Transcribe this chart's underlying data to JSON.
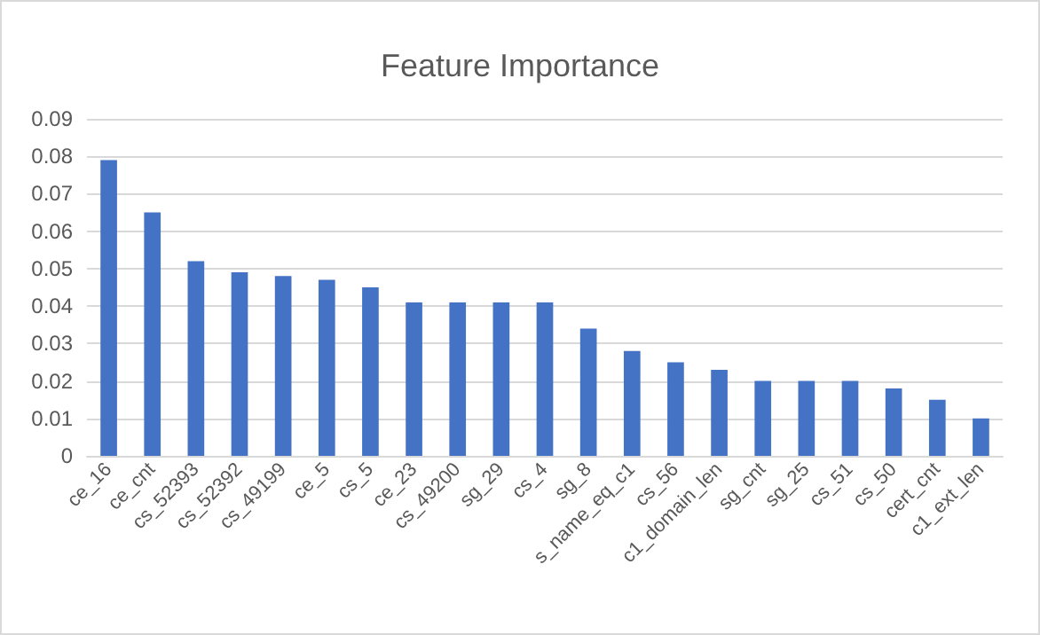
{
  "chart_data": {
    "type": "bar",
    "title": "Feature Importance",
    "categories": [
      "ce_16",
      "ce_cnt",
      "cs_52393",
      "cs_52392",
      "cs_49199",
      "ce_5",
      "cs_5",
      "ce_23",
      "cs_49200",
      "sg_29",
      "cs_4",
      "sg_8",
      "s_name_eq_c1",
      "cs_56",
      "c1_domain_len",
      "sg_cnt",
      "sg_25",
      "cs_51",
      "cs_50",
      "cert_cnt",
      "c1_ext_len"
    ],
    "values": [
      0.079,
      0.065,
      0.052,
      0.049,
      0.048,
      0.047,
      0.045,
      0.041,
      0.041,
      0.041,
      0.041,
      0.034,
      0.028,
      0.025,
      0.023,
      0.02,
      0.02,
      0.02,
      0.018,
      0.015,
      0.01
    ],
    "color": "#4472c4",
    "ylim": [
      0,
      0.09
    ],
    "yticks": [
      0,
      0.01,
      0.02,
      0.03,
      0.04,
      0.05,
      0.06,
      0.07,
      0.08,
      0.09
    ],
    "grid": "y"
  }
}
